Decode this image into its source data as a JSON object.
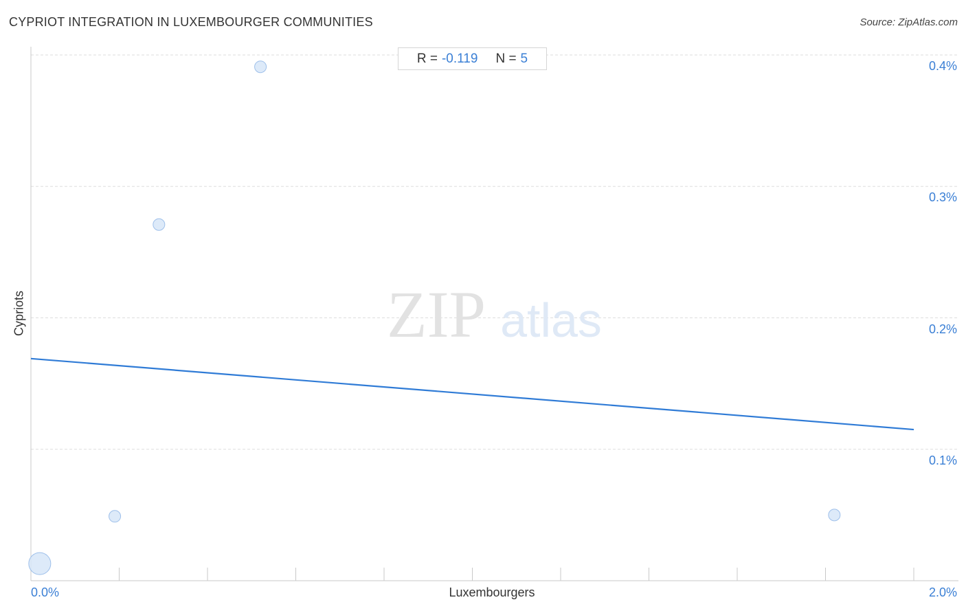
{
  "title": "CYPRIOT INTEGRATION IN LUXEMBOURGER COMMUNITIES",
  "source": "Source: ZipAtlas.com",
  "stats": {
    "r_label": "R =",
    "r_value": "-0.119",
    "n_label": "N =",
    "n_value": "5"
  },
  "watermark": {
    "zip": "ZIP",
    "atlas": "atlas"
  },
  "colors": {
    "accent": "#3a7fd5",
    "trend": "#2f7bd6",
    "point_fill": "#d7e6f8",
    "point_stroke": "#9dbfea"
  },
  "chart_data": {
    "type": "scatter",
    "xlabel": "Luxembourgers",
    "ylabel": "Cypriots",
    "xlim": [
      0,
      2.0
    ],
    "ylim": [
      0,
      0.4
    ],
    "x_tick_labels": [
      "0.0%",
      "2.0%"
    ],
    "y_tick_labels": [
      {
        "value": 0.1,
        "label": "0.1%"
      },
      {
        "value": 0.2,
        "label": "0.2%"
      },
      {
        "value": 0.3,
        "label": "0.3%"
      },
      {
        "value": 0.4,
        "label": "0.4%"
      }
    ],
    "grid": true,
    "points": [
      {
        "x": 0.02,
        "y": 0.013,
        "size": "large"
      },
      {
        "x": 0.19,
        "y": 0.049,
        "size": "small"
      },
      {
        "x": 0.29,
        "y": 0.271,
        "size": "small"
      },
      {
        "x": 0.52,
        "y": 0.391,
        "size": "small"
      },
      {
        "x": 1.82,
        "y": 0.05,
        "size": "small"
      }
    ],
    "trendline": {
      "x": [
        0,
        2.0
      ],
      "y": [
        0.169,
        0.115
      ]
    }
  }
}
